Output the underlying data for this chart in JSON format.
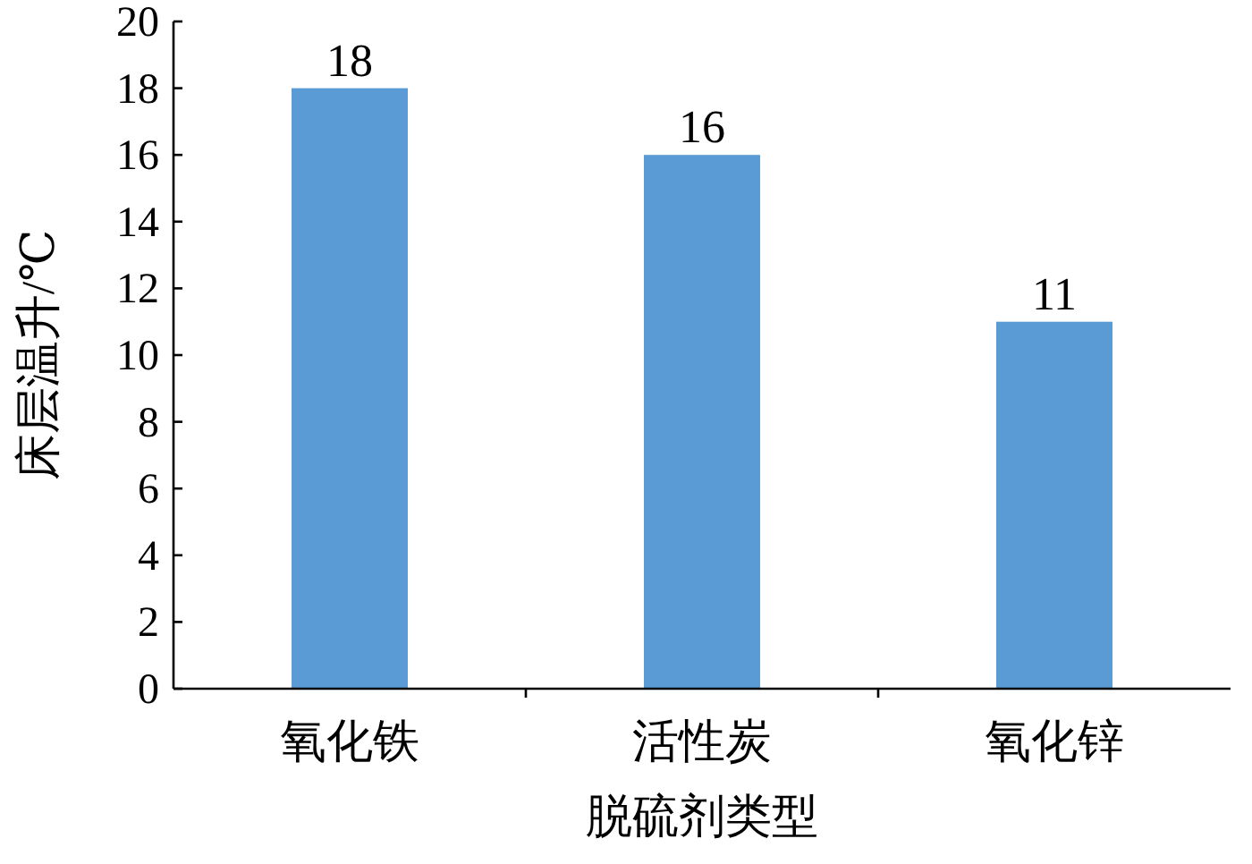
{
  "chart_data": {
    "type": "bar",
    "categories": [
      "氧化铁",
      "活性炭",
      "氧化锌"
    ],
    "values": [
      18,
      16,
      11
    ],
    "color": "#5b9bd5",
    "xlabel": "脱硫剂类型",
    "ylabel": "床层温升/℃",
    "ylim": [
      0,
      20
    ],
    "yticks": [
      0,
      2,
      4,
      6,
      8,
      10,
      12,
      14,
      16,
      18,
      20
    ],
    "data_labels": true,
    "grid": false
  }
}
